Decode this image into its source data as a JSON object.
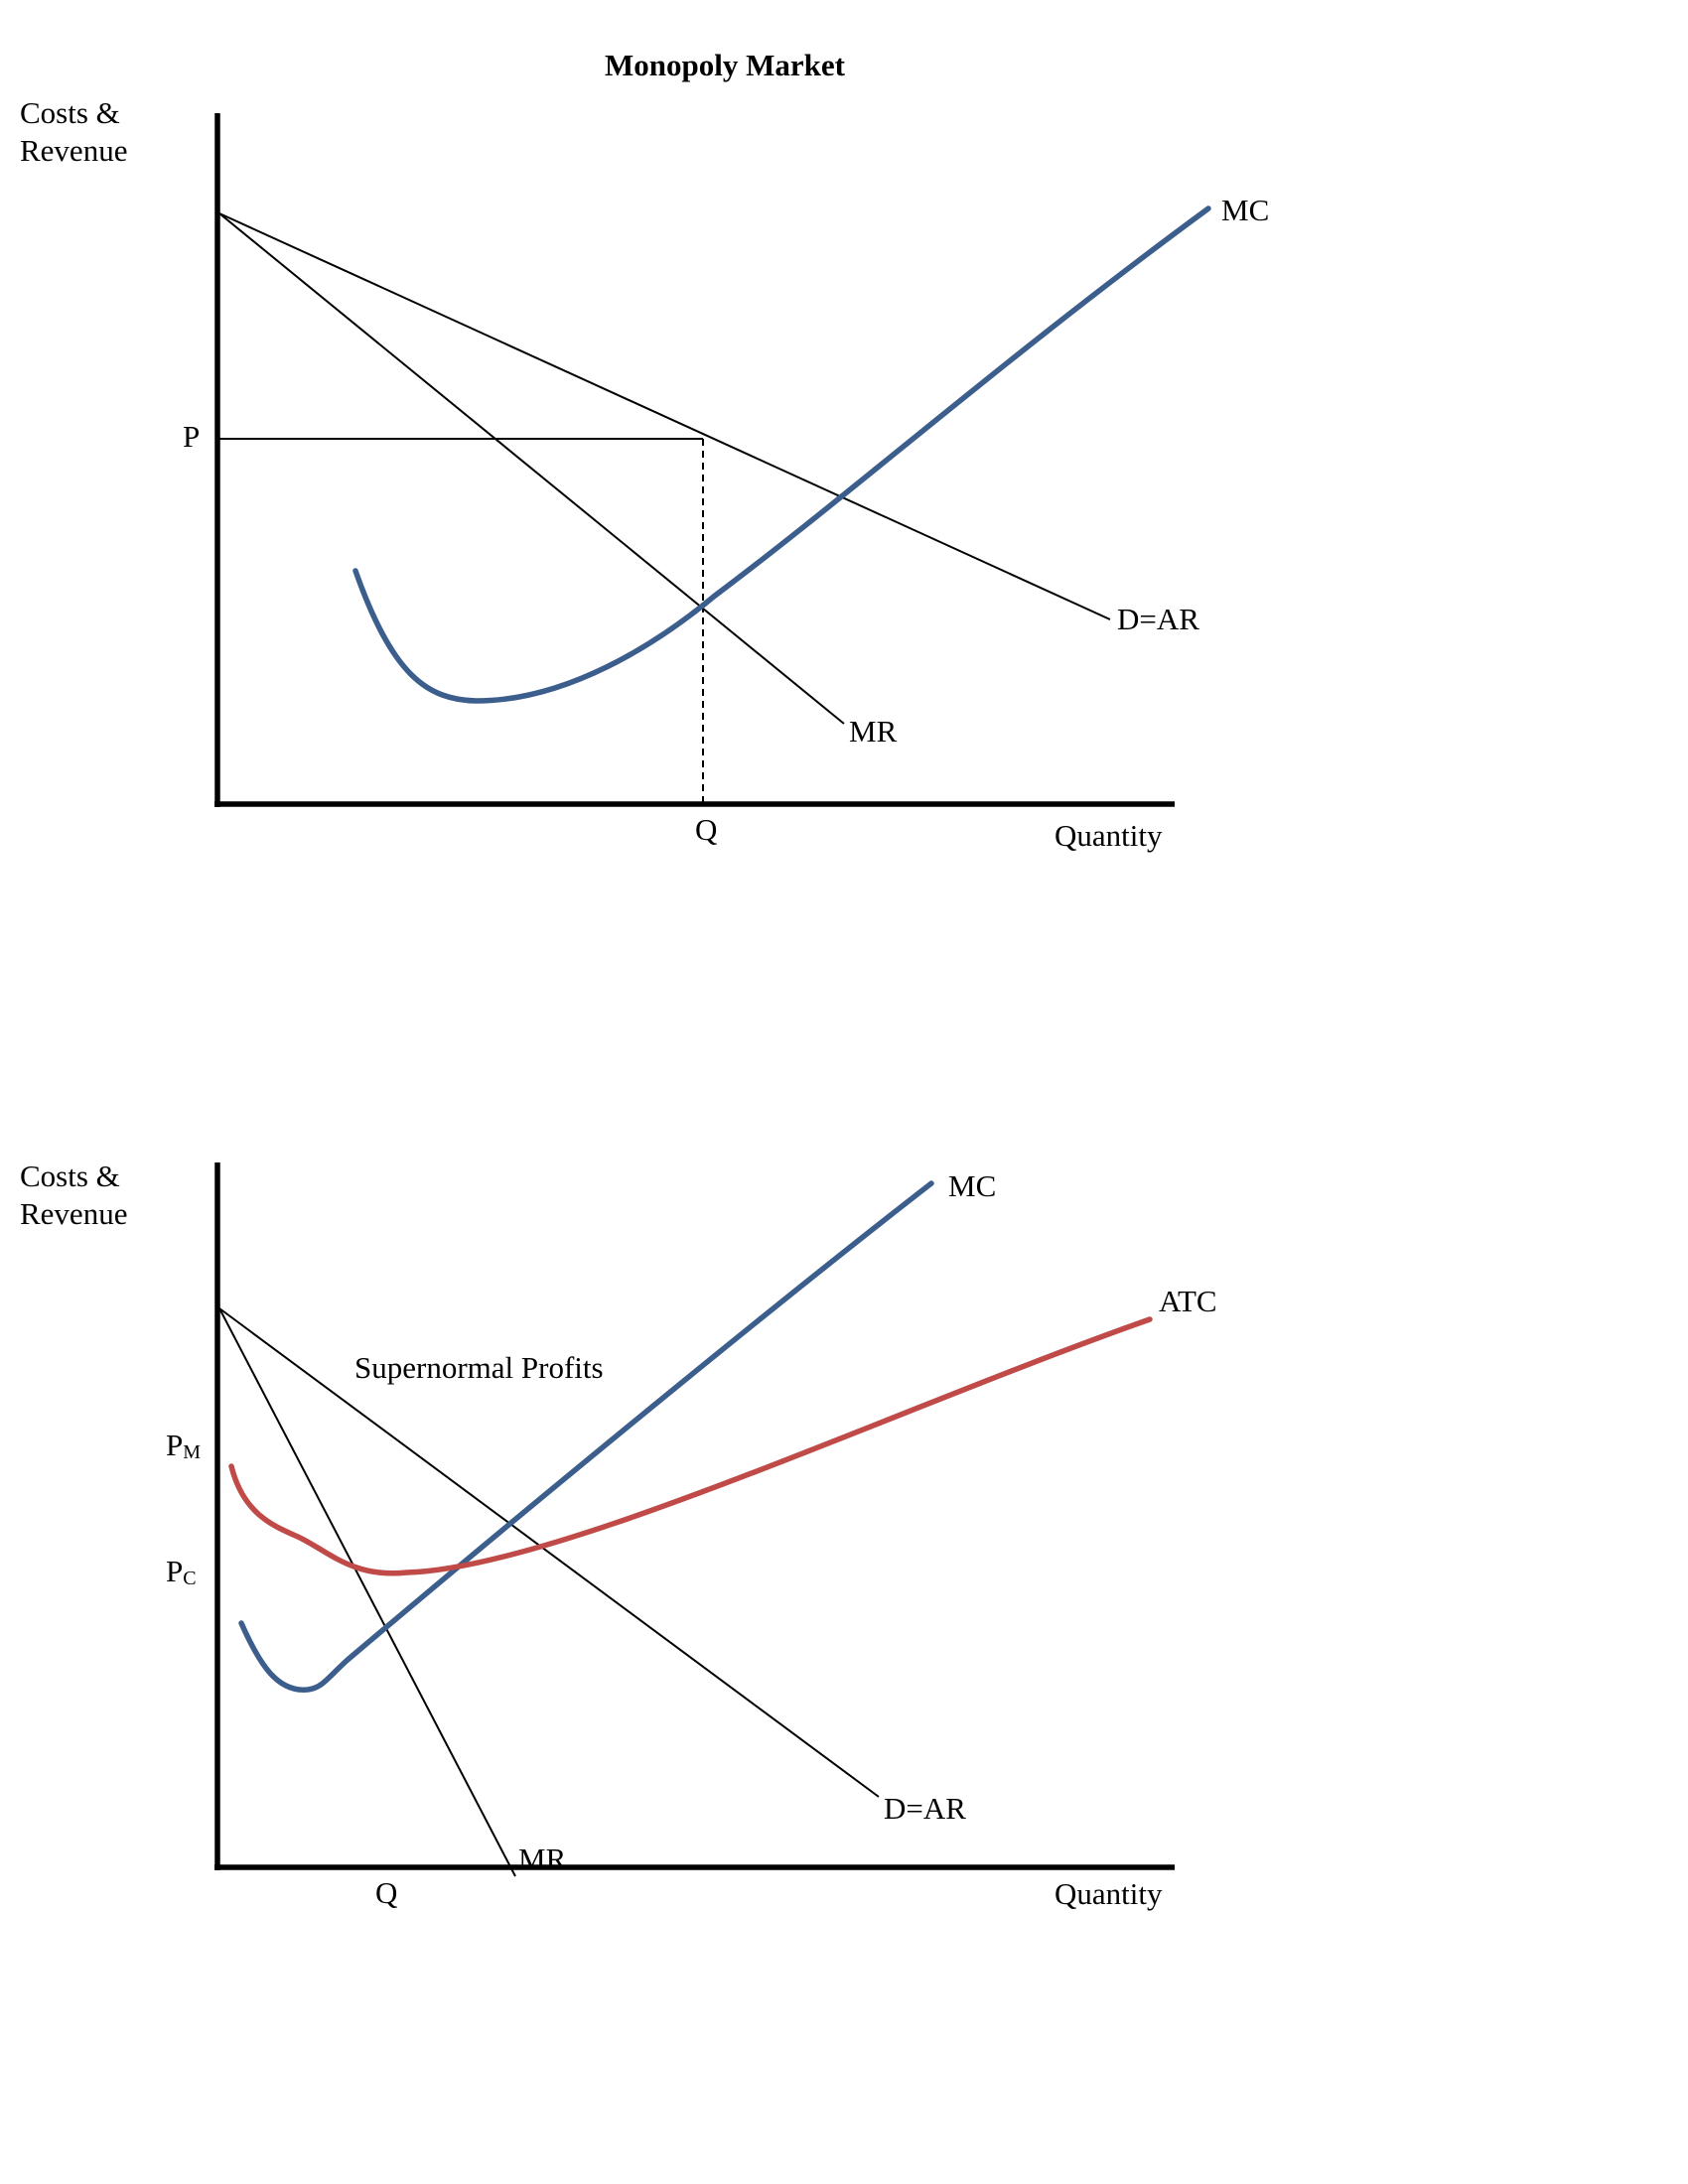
{
  "colors": {
    "mc": "#3b5e8c",
    "atc": "#bf4a47",
    "ink": "#000000"
  },
  "diagram1": {
    "title": "Monopoly Market",
    "ylabel_line1": "Costs &",
    "ylabel_line2": "Revenue",
    "xlabel": "Quantity",
    "price_label": "P",
    "quantity_label": "Q",
    "curves": {
      "mc": "MC",
      "demand": "D=AR",
      "mr": "MR"
    }
  },
  "diagram2": {
    "ylabel_line1": "Costs &",
    "ylabel_line2": "Revenue",
    "xlabel": "Quantity",
    "pm_label": "P",
    "pm_sub": "M",
    "pc_label": "P",
    "pc_sub": "C",
    "quantity_label": "Q",
    "annotation": "Supernormal Profits",
    "curves": {
      "mc": "MC",
      "atc": "ATC",
      "demand": "D=AR",
      "mr": "MR"
    }
  }
}
